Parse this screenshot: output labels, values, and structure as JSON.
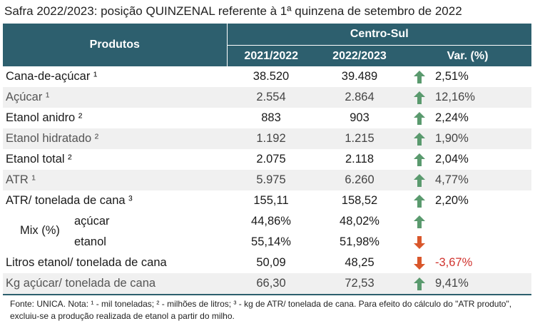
{
  "title": "Safra 2022/2023: posição QUINZENAL referente à 1ª quinzena de setembro de 2022",
  "header": {
    "produtos": "Produtos",
    "region": "Centro-Sul",
    "col1": "2021/2022",
    "col2": "2022/2023",
    "col3": "Var. (%)"
  },
  "rows": [
    {
      "label": "Cana-de-açúcar ¹",
      "v1": "38.520",
      "v2": "39.489",
      "var": "2,51%",
      "dir": "up"
    },
    {
      "label": "Açúcar ¹",
      "v1": "2.554",
      "v2": "2.864",
      "var": "12,16%",
      "dir": "up"
    },
    {
      "label": "Etanol anidro ²",
      "v1": "883",
      "v2": "903",
      "var": "2,24%",
      "dir": "up"
    },
    {
      "label": "Etanol hidratado ²",
      "v1": "1.192",
      "v2": "1.215",
      "var": "1,90%",
      "dir": "up"
    },
    {
      "label": "Etanol total ²",
      "v1": "2.075",
      "v2": "2.118",
      "var": "2,04%",
      "dir": "up"
    },
    {
      "label": "ATR ¹",
      "v1": "5.975",
      "v2": "6.260",
      "var": "4,77%",
      "dir": "up"
    },
    {
      "label": "ATR/ tonelada de cana ³",
      "v1": "155,11",
      "v2": "158,52",
      "var": "2,20%",
      "dir": "up"
    }
  ],
  "mix": {
    "label": "Mix (%)",
    "acucar": {
      "label": "açúcar",
      "v1": "44,86%",
      "v2": "48,02%",
      "dir": "up"
    },
    "etanol": {
      "label": "etanol",
      "v1": "55,14%",
      "v2": "51,98%",
      "dir": "down"
    }
  },
  "rows2": [
    {
      "label": "Litros etanol/ tonelada de cana",
      "v1": "50,09",
      "v2": "48,25",
      "var": "-3,67%",
      "dir": "down"
    },
    {
      "label": "Kg açúcar/ tonelada de cana",
      "v1": "66,30",
      "v2": "72,53",
      "var": "9,41%",
      "dir": "up"
    }
  ],
  "footnote": "Fonte: UNICA. Nota: ¹ - mil toneladas; ² - milhões de litros; ³ - kg de ATR/ tonelada de cana. Para efeito do cálculo do \"ATR produto\", excluiu-se a produção realizada de etanol a partir do milho.",
  "colors": {
    "header_bg": "#2d5f6e",
    "up_arrow": "#5a9a6e",
    "down_arrow": "#d9572b",
    "negative_text": "#d0322d"
  },
  "icons": {
    "up": "arrow-up-icon",
    "down": "arrow-down-icon"
  }
}
